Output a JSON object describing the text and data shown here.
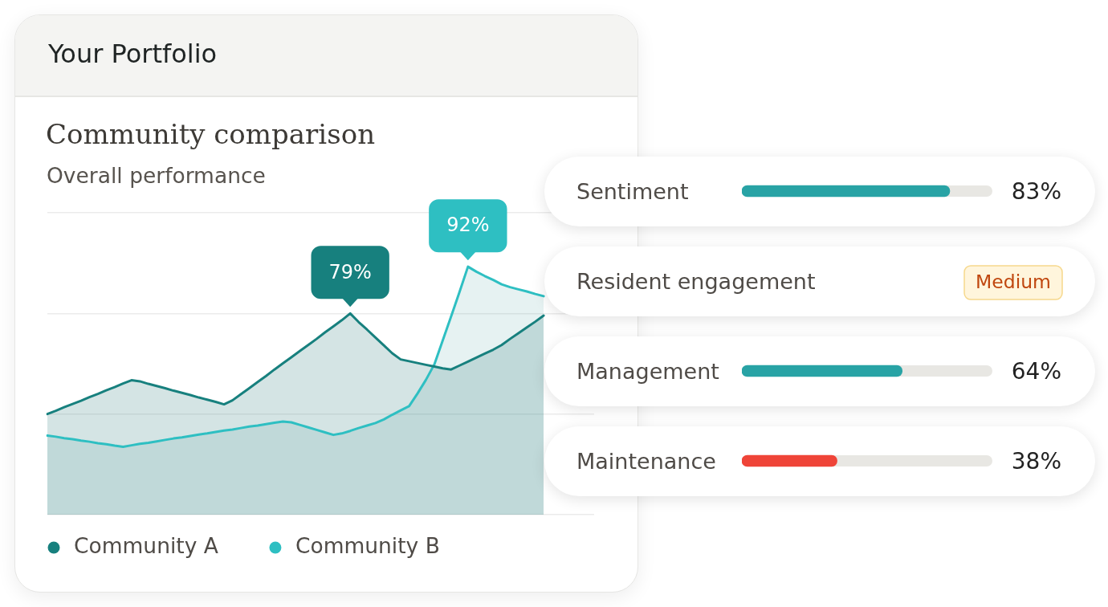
{
  "chart_data": [
    {
      "type": "area",
      "title": "Community comparison",
      "subtitle": "Overall performance",
      "annotations": [
        "Your Portfolio"
      ],
      "categories": [
        null,
        null,
        null,
        null,
        null,
        null,
        null,
        null,
        null,
        null,
        null,
        null,
        null,
        null,
        null,
        null,
        null,
        null,
        null,
        null,
        null,
        null,
        null,
        null,
        null,
        null,
        null,
        null,
        null,
        null,
        null,
        null,
        null,
        null,
        null,
        null,
        null,
        null,
        null,
        null,
        null,
        null,
        null,
        null,
        null,
        null,
        null,
        null,
        null,
        null,
        null,
        null,
        null,
        null,
        null,
        null,
        null,
        null,
        null,
        null,
        null,
        null,
        null,
        null,
        null,
        null
      ],
      "series": [
        {
          "name": "Community A",
          "color": "#17807e",
          "values": [
            51.0,
            51.9,
            52.9,
            53.8,
            54.7,
            55.7,
            56.6,
            57.6,
            58.5,
            59.5,
            60.4,
            60.1,
            59.4,
            58.8,
            58.2,
            57.5,
            56.9,
            56.3,
            55.6,
            55.0,
            54.4,
            53.7,
            54.8,
            56.5,
            58.2,
            59.9,
            61.6,
            63.4,
            65.1,
            66.8,
            68.5,
            70.2,
            71.9,
            73.7,
            75.4,
            77.1,
            79,
            76.6,
            74.5,
            72.3,
            70.1,
            67.9,
            66.2,
            65.7,
            65.2,
            64.7,
            64.2,
            63.7,
            63.4,
            64.5,
            65.6,
            66.7,
            67.8,
            68.9,
            70.2,
            71.9,
            73.5,
            75.1,
            76.7,
            78.4,
            null,
            null,
            null,
            null,
            null,
            null
          ],
          "value_labels": [
            null,
            null,
            null,
            null,
            null,
            null,
            null,
            null,
            null,
            null,
            null,
            null,
            null,
            null,
            null,
            null,
            null,
            null,
            null,
            null,
            null,
            null,
            null,
            null,
            null,
            null,
            null,
            null,
            null,
            null,
            null,
            null,
            null,
            null,
            null,
            null,
            "79%",
            null,
            null,
            null,
            null,
            null,
            null,
            null,
            null,
            null,
            null,
            null,
            null,
            null,
            null,
            null,
            null,
            null,
            null,
            null,
            null,
            null,
            null,
            null,
            null,
            null,
            null,
            null,
            null,
            null
          ]
        },
        {
          "name": "Community B",
          "color": "#2ebfc2",
          "values": [
            45.0,
            44.7,
            44.3,
            44.0,
            43.6,
            43.3,
            42.9,
            42.6,
            42.2,
            41.9,
            42.3,
            42.7,
            43.0,
            43.4,
            43.8,
            44.2,
            44.5,
            44.9,
            45.3,
            45.6,
            46.0,
            46.4,
            46.7,
            47.1,
            47.5,
            47.8,
            48.2,
            48.6,
            48.9,
            48.7,
            48.0,
            47.3,
            46.6,
            45.9,
            45.2,
            45.6,
            46.3,
            47.1,
            47.8,
            48.5,
            49.5,
            50.8,
            52.0,
            53.2,
            56.7,
            60.5,
            64.8,
            71.5,
            78.2,
            85.0,
            92,
            90.6,
            89.4,
            88.3,
            87.1,
            86.3,
            85.7,
            85.1,
            84.4,
            83.8,
            null,
            null,
            null,
            null,
            null,
            null
          ],
          "value_labels": [
            null,
            null,
            null,
            null,
            null,
            null,
            null,
            null,
            null,
            null,
            null,
            null,
            null,
            null,
            null,
            null,
            null,
            null,
            null,
            null,
            null,
            null,
            null,
            null,
            null,
            null,
            null,
            null,
            null,
            null,
            null,
            null,
            null,
            null,
            null,
            null,
            null,
            null,
            null,
            null,
            null,
            null,
            null,
            null,
            null,
            null,
            null,
            null,
            null,
            null,
            "92%",
            null,
            null,
            null,
            null,
            null,
            null,
            null,
            null,
            null,
            null,
            null,
            null,
            null,
            null,
            null
          ]
        }
      ],
      "yticks": [
        {
          "value": 23,
          "label": null
        },
        {
          "value": 51,
          "label": null
        },
        {
          "value": 79,
          "label": null
        },
        {
          "value": 107,
          "label": null
        }
      ],
      "grid": "y",
      "legend": "bottom",
      "tick_labels": false,
      "marker": "none"
    },
    {
      "type": "bar",
      "orientation": "horizontal",
      "categories": [
        "Sentiment",
        "Resident engagement",
        "Management",
        "Maintenance"
      ],
      "values": [
        83,
        null,
        64,
        38
      ],
      "colors": [
        "#28a3a5",
        null,
        "#28a3a5",
        "#ef4438"
      ],
      "value_labels": [
        "83%",
        "Medium",
        "64%",
        "38%"
      ],
      "xlim": [
        0,
        100
      ],
      "tick_labels": "y"
    }
  ]
}
